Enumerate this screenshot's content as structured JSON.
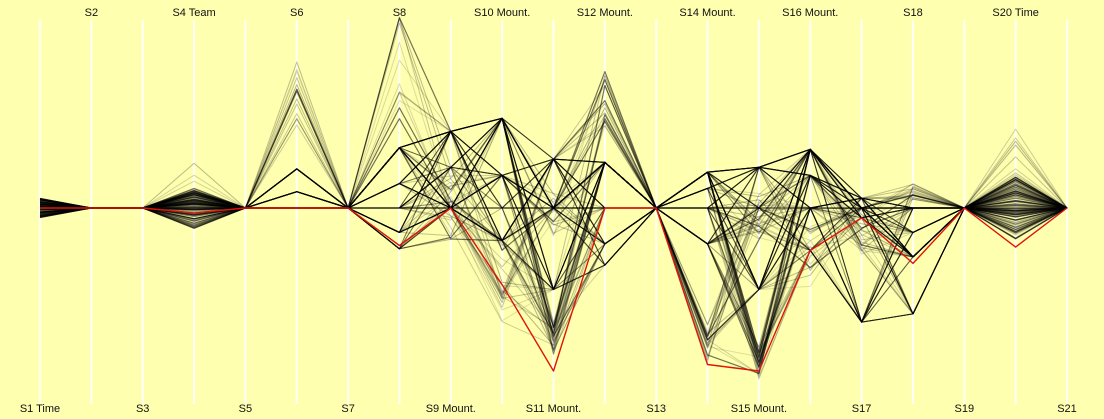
{
  "chart_data": {
    "type": "parallel-coordinates",
    "background": "#ffffb0",
    "axis_color": "#ffffff",
    "context_color": "#000000",
    "highlight_color": "#e0140a",
    "axes": [
      {
        "label": "S1 Time",
        "position": "bottom"
      },
      {
        "label": "S2",
        "position": "top"
      },
      {
        "label": "S3",
        "position": "bottom"
      },
      {
        "label": "S4 Team",
        "position": "top"
      },
      {
        "label": "S5",
        "position": "bottom"
      },
      {
        "label": "S6",
        "position": "top"
      },
      {
        "label": "S7",
        "position": "bottom"
      },
      {
        "label": "S8",
        "position": "top"
      },
      {
        "label": "S9 Mount.",
        "position": "bottom"
      },
      {
        "label": "S10 Mount.",
        "position": "top"
      },
      {
        "label": "S11 Mount.",
        "position": "bottom"
      },
      {
        "label": "S12 Mount.",
        "position": "top"
      },
      {
        "label": "S13",
        "position": "bottom"
      },
      {
        "label": "S14 Mount.",
        "position": "top"
      },
      {
        "label": "S15 Mount.",
        "position": "bottom"
      },
      {
        "label": "S16 Mount.",
        "position": "top"
      },
      {
        "label": "S17",
        "position": "bottom"
      },
      {
        "label": "S18",
        "position": "top"
      },
      {
        "label": "S19",
        "position": "bottom"
      },
      {
        "label": "S20 Time",
        "position": "top"
      },
      {
        "label": "S21",
        "position": "bottom"
      }
    ],
    "value_range": [
      -1,
      1
    ],
    "series_count": 160,
    "highlight": {
      "values": [
        0.0,
        0.0,
        0.0,
        -0.03,
        0.0,
        0.0,
        0.0,
        -0.23,
        0.0,
        -0.47,
        -1.0,
        0.0,
        0.0,
        -0.96,
        -1.0,
        -0.26,
        -0.06,
        -0.34,
        0.0,
        -0.24,
        0.0
      ]
    },
    "max_spread": [
      0.1,
      0.01,
      0.0,
      0.25,
      0.0,
      0.95,
      0.0,
      1.2,
      0.55,
      0.8,
      0.95,
      0.95,
      0.0,
      0.9,
      1.15,
      0.8,
      0.8,
      0.7,
      0.0,
      0.4,
      0.0
    ]
  }
}
